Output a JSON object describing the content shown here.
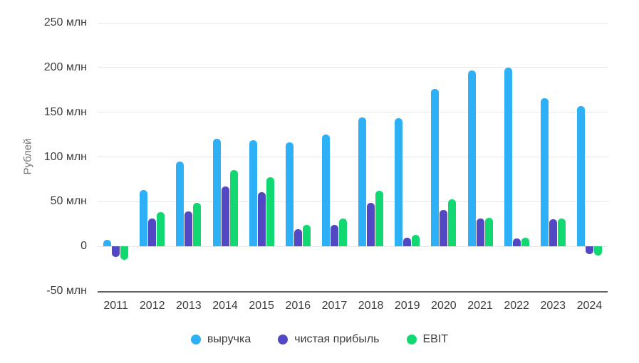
{
  "chart_data": {
    "type": "bar",
    "title": "",
    "ylabel": "Рублей",
    "categories": [
      "2011",
      "2012",
      "2013",
      "2014",
      "2015",
      "2016",
      "2017",
      "2018",
      "2019",
      "2020",
      "2021",
      "2022",
      "2023",
      "2024"
    ],
    "series": [
      {
        "name": "выручка",
        "color": "#2eb0f7",
        "values": [
          7,
          63,
          95,
          120,
          119,
          116,
          125,
          144,
          143,
          176,
          197,
          200,
          166,
          157
        ]
      },
      {
        "name": "чистая прибыль",
        "color": "#5348c4",
        "values": [
          -12,
          31,
          39,
          67,
          61,
          19,
          24,
          49,
          10,
          41,
          31,
          9,
          30,
          -9
        ]
      },
      {
        "name": "EBIT",
        "color": "#12d872",
        "values": [
          -15,
          38,
          49,
          85,
          77,
          24,
          31,
          62,
          13,
          53,
          32,
          10,
          31,
          -10
        ]
      }
    ],
    "y_axis": {
      "min": -50,
      "max": 250,
      "tick_step": 50,
      "unit": "млн",
      "tick_labels": [
        "250 млн",
        "200 млн",
        "150 млн",
        "100 млн",
        "50 млн",
        "0",
        "-50 млн"
      ]
    },
    "grid": true,
    "legend_position": "bottom"
  },
  "colors": {
    "gridline": "#e8e8e8",
    "axis_line": "#5f6368",
    "tick_text": "#3c3c3c",
    "y_title_text": "#757575",
    "background": "#ffffff"
  }
}
